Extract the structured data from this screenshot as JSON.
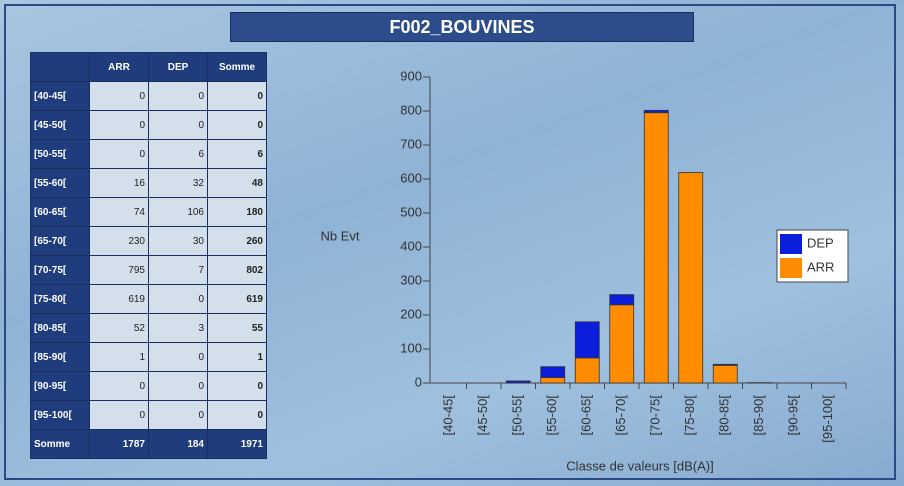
{
  "title": "F002_BOUVINES",
  "table": {
    "columns": [
      "ARR",
      "DEP",
      "Somme"
    ],
    "rows": [
      {
        "label": "[40-45[",
        "values": [
          0,
          0,
          0
        ]
      },
      {
        "label": "[45-50[",
        "values": [
          0,
          0,
          0
        ]
      },
      {
        "label": "[50-55[",
        "values": [
          0,
          6,
          6
        ]
      },
      {
        "label": "[55-60[",
        "values": [
          16,
          32,
          48
        ]
      },
      {
        "label": "[60-65[",
        "values": [
          74,
          106,
          180
        ]
      },
      {
        "label": "[65-70[",
        "values": [
          230,
          30,
          260
        ]
      },
      {
        "label": "[70-75[",
        "values": [
          795,
          7,
          802
        ]
      },
      {
        "label": "[75-80[",
        "values": [
          619,
          0,
          619
        ]
      },
      {
        "label": "[80-85[",
        "values": [
          52,
          3,
          55
        ]
      },
      {
        "label": "[85-90[",
        "values": [
          1,
          0,
          1
        ]
      },
      {
        "label": "[90-95[",
        "values": [
          0,
          0,
          0
        ]
      },
      {
        "label": "[95-100[",
        "values": [
          0,
          0,
          0
        ]
      }
    ],
    "total": {
      "label": "Somme",
      "values": [
        1787,
        184,
        1971
      ]
    }
  },
  "chart_data": {
    "type": "stacked_bar",
    "y_label": "Nb Evt",
    "x_label": "Classe de valeurs [dB(A)]",
    "categories": [
      "[40-45[",
      "[45-50[",
      "[50-55[",
      "[55-60[",
      "[60-65[",
      "[65-70[",
      "[70-75[",
      "[75-80[",
      "[80-85[",
      "[85-90[",
      "[90-95[",
      "[95-100["
    ],
    "series": [
      {
        "name": "ARR",
        "color": "#ff8c00",
        "values": [
          0,
          0,
          0,
          16,
          74,
          230,
          795,
          619,
          52,
          1,
          0,
          0
        ]
      },
      {
        "name": "DEP",
        "color": "#0a1edc",
        "values": [
          0,
          0,
          6,
          32,
          106,
          30,
          7,
          0,
          3,
          0,
          0,
          0
        ]
      }
    ],
    "ylim": [
      0,
      900
    ],
    "yticks": [
      0,
      100,
      200,
      300,
      400,
      500,
      600,
      700,
      800,
      900
    ],
    "legend": "right"
  }
}
